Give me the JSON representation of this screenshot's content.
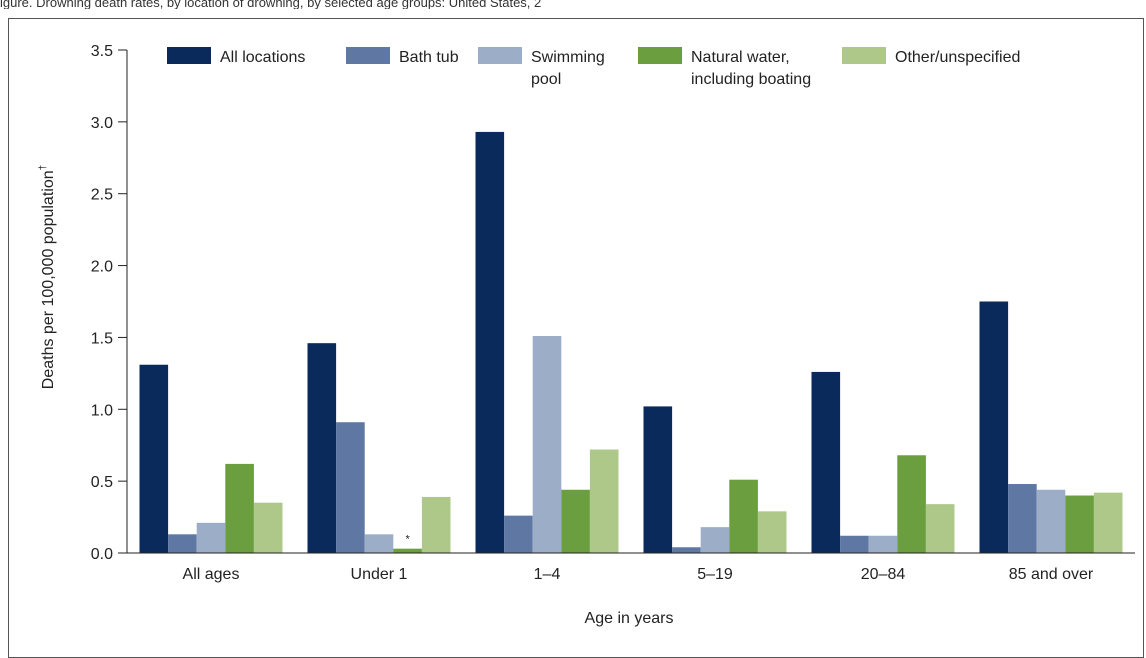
{
  "header_text": "igure. Drowning death rates, by location of drowning, by selected age groups: United States, 2",
  "chart_data": {
    "type": "bar",
    "title": "",
    "xlabel": "Age in years",
    "ylabel": "Deaths per 100,000 population",
    "ylabel_mark": "†",
    "ylim": [
      0,
      3.5
    ],
    "yticks": [
      "0.0",
      "0.5",
      "1.0",
      "1.5",
      "2.0",
      "2.5",
      "3.0",
      "3.5"
    ],
    "grid": false,
    "legend_position": "top",
    "categories": [
      "All ages",
      "Under 1",
      "1–4",
      "5–19",
      "20–84",
      "85 and over"
    ],
    "series": [
      {
        "name": "All locations",
        "color": "#0a2a5c",
        "values": [
          1.31,
          1.46,
          2.93,
          1.02,
          1.26,
          1.75
        ]
      },
      {
        "name": "Bath tub",
        "color": "#5e78a3",
        "values": [
          0.13,
          0.91,
          0.26,
          0.04,
          0.12,
          0.48
        ]
      },
      {
        "name": "Swimming pool",
        "color": "#9cadc8",
        "values": [
          0.21,
          0.13,
          1.51,
          0.18,
          0.12,
          0.44
        ]
      },
      {
        "name": "Natural water, including boating",
        "color": "#6a9e3e",
        "values": [
          0.62,
          0.03,
          0.44,
          0.51,
          0.68,
          0.4
        ]
      },
      {
        "name": "Other/unspecified",
        "color": "#adc889",
        "values": [
          0.35,
          0.39,
          0.72,
          0.29,
          0.34,
          0.42
        ]
      }
    ],
    "legend_lines": [
      [
        "All locations"
      ],
      [
        "Bath tub"
      ],
      [
        "Swimming",
        "pool"
      ],
      [
        "Natural water,",
        "including boating"
      ],
      [
        "Other/unspecified"
      ]
    ],
    "annotations": [
      {
        "category": "Under 1",
        "series": "Natural water, including boating",
        "text": "*"
      }
    ]
  }
}
